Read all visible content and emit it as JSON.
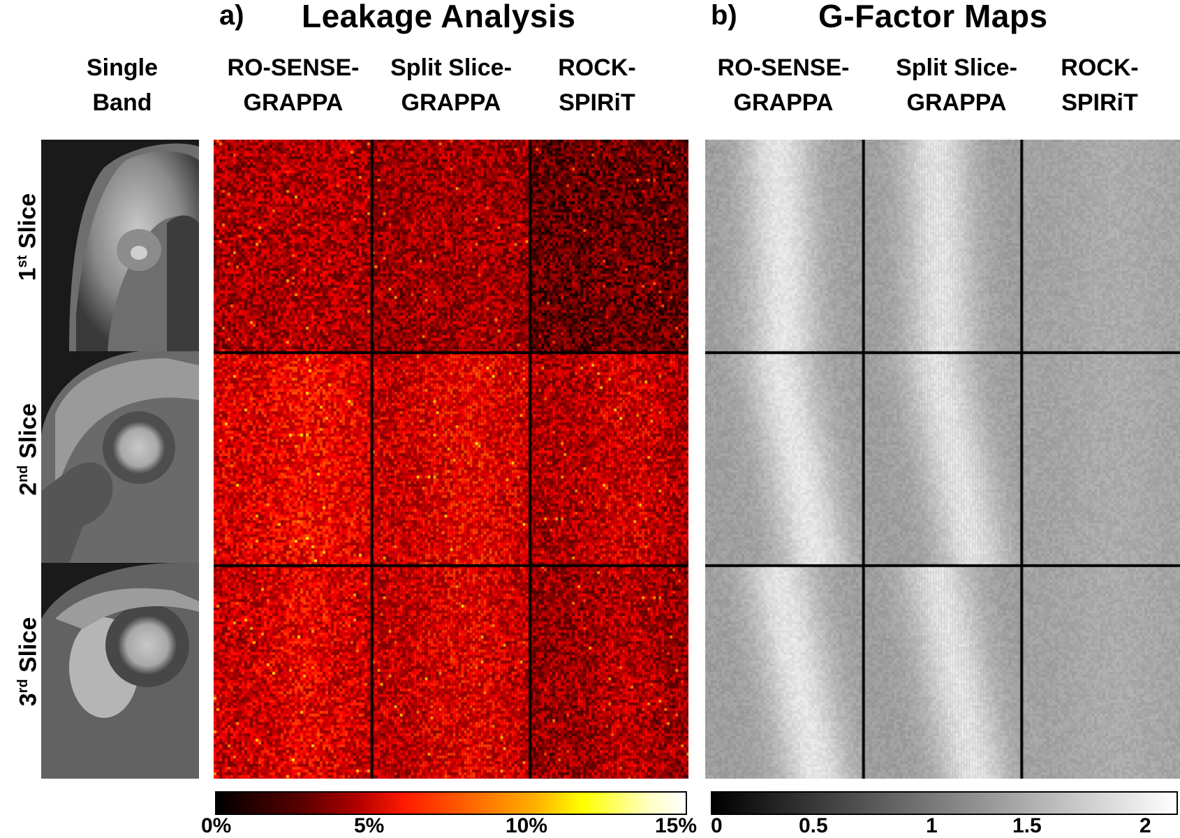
{
  "panel_a": {
    "letter": "a)",
    "title": "Leakage Analysis",
    "columns": [
      {
        "line1": "RO-SENSE-",
        "line2": "GRAPPA"
      },
      {
        "line1": "Split Slice-",
        "line2": "GRAPPA"
      },
      {
        "line1": "ROCK-",
        "line2": "SPIRiT"
      }
    ],
    "colorbar_ticks": [
      "0%",
      "5%",
      "10%",
      "15%"
    ],
    "colormap": "hot",
    "colorbar_range": [
      0,
      15
    ]
  },
  "panel_b": {
    "letter": "b)",
    "title": "G-Factor Maps",
    "columns": [
      {
        "line1": "RO-SENSE-",
        "line2": "GRAPPA"
      },
      {
        "line1": "Split Slice-",
        "line2": "GRAPPA"
      },
      {
        "line1": "ROCK-",
        "line2": "SPIRiT"
      }
    ],
    "colorbar_ticks": [
      "0",
      "0.5",
      "1",
      "1.5",
      "2"
    ],
    "colormap": "gray",
    "colorbar_range": [
      0,
      2.1
    ]
  },
  "single_band": {
    "line1": "Single",
    "line2": "Band"
  },
  "rows": [
    {
      "num": "1",
      "sup": "st",
      "word": " Slice"
    },
    {
      "num": "2",
      "sup": "nd",
      "word": " Slice"
    },
    {
      "num": "3",
      "sup": "rd",
      "word": " Slice"
    }
  ]
}
